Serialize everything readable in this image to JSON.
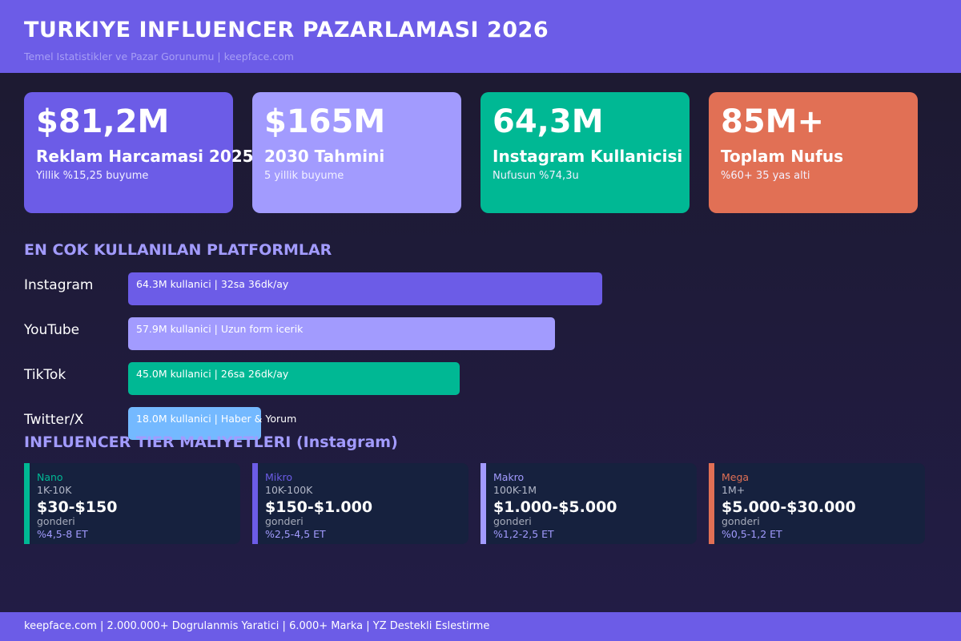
{
  "header": {
    "title": "TURKIYE INFLUENCER PAZARLAMASI 2026",
    "subtitle": "Temel Istatistikler ve Pazar Gorunumu  |  keepface.com"
  },
  "stats": [
    {
      "value": "$81,2M",
      "label": "Reklam Harcamasi 2025",
      "sub": "Yillik %15,25 buyume",
      "color": "#6c5ce7"
    },
    {
      "value": "$165M",
      "label": "2030 Tahmini",
      "sub": "5 yillik buyume",
      "color": "#a29bfe"
    },
    {
      "value": "64,3M",
      "label": "Instagram Kullanicisi",
      "sub": "Nufusun %74,3u",
      "color": "#00b894"
    },
    {
      "value": "85M+",
      "label": "Toplam Nufus",
      "sub": "%60+ 35 yas alti",
      "color": "#e17055"
    }
  ],
  "platforms_section": {
    "title": "EN COK KULLANILAN PLATFORMLAR",
    "items": [
      {
        "name": "Instagram",
        "users_m": 64.3,
        "text": "64.3M kullanici  |  32sa 36dk/ay",
        "color": "#6c5ce7"
      },
      {
        "name": "YouTube",
        "users_m": 57.9,
        "text": "57.9M kullanici  |  Uzun form icerik",
        "color": "#a29bfe"
      },
      {
        "name": "TikTok",
        "users_m": 45.0,
        "text": "45.0M kullanici  |  26sa 26dk/ay",
        "color": "#00b894"
      },
      {
        "name": "Twitter/X",
        "users_m": 18.0,
        "text": "18.0M kullanici  |  Haber & Yorum",
        "color": "#74b9ff"
      }
    ]
  },
  "tiers_section": {
    "title": "INFLUENCER TIER MALIYETLERI (Instagram)",
    "items": [
      {
        "name": "Nano",
        "range": "1K-10K",
        "price": "$30-$150",
        "unit": "gonderi",
        "er": "%4,5-8 ET",
        "color": "#00b894"
      },
      {
        "name": "Mikro",
        "range": "10K-100K",
        "price": "$150-$1.000",
        "unit": "gonderi",
        "er": "%2,5-4,5 ET",
        "color": "#6c5ce7"
      },
      {
        "name": "Makro",
        "range": "100K-1M",
        "price": "$1.000-$5.000",
        "unit": "gonderi",
        "er": "%1,2-2,5 ET",
        "color": "#a29bfe"
      },
      {
        "name": "Mega",
        "range": "1M+",
        "price": "$5.000-$30.000",
        "unit": "gonderi",
        "er": "%0,5-1,2 ET",
        "color": "#e17055"
      }
    ]
  },
  "footer": {
    "text": "keepface.com  |  2.000.000+ Dogrulanmis Yaratici  |  6.000+ Marka  |  YZ Destekli Eslestirme"
  }
}
